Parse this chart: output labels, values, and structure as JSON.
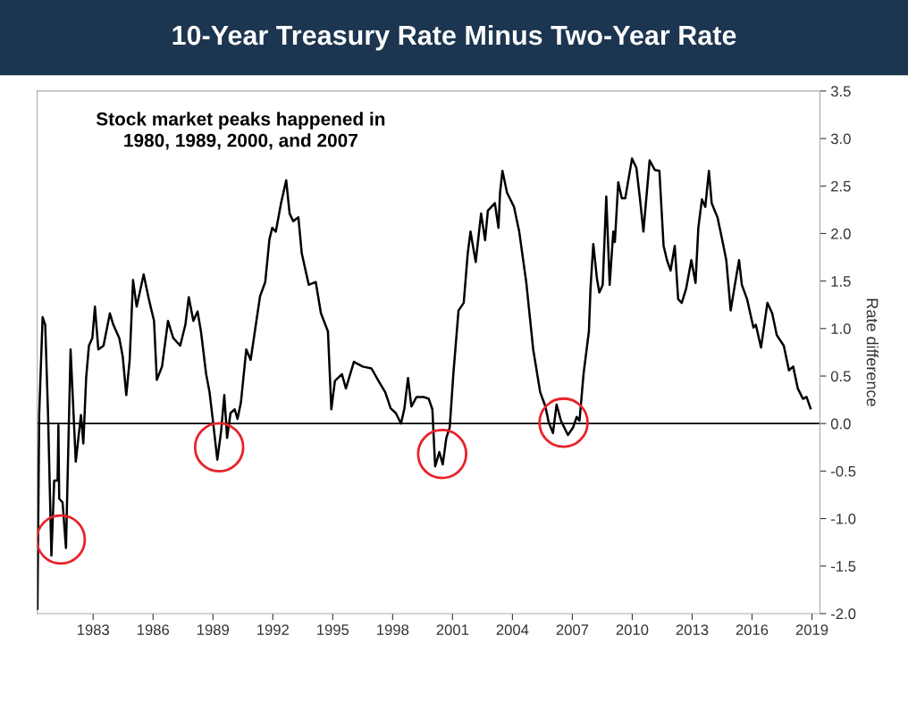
{
  "chart_data": {
    "type": "line",
    "title": "10-Year Treasury Rate Minus Two-Year Rate",
    "ylabel": "Rate difference",
    "annotations": [
      "Stock market peaks happened in\n1980, 1989, 2000, and 2007"
    ],
    "xlim": [
      1980.2,
      2019.4
    ],
    "xticks": [
      1983,
      1986,
      1989,
      1992,
      1995,
      1998,
      2001,
      2004,
      2007,
      2010,
      2013,
      2016,
      2019
    ],
    "ylim": [
      -2.0,
      3.5
    ],
    "yticks": [
      {
        "value": -2,
        "label": "-2.0"
      },
      -1.5,
      {
        "value": -1,
        "label": "-1.0"
      },
      -0.5,
      {
        "value": 0,
        "label": "0.0"
      },
      0.5,
      {
        "value": 1,
        "label": "1.0"
      },
      1.5,
      {
        "value": 2,
        "label": "2.0"
      },
      2.5,
      {
        "value": 3,
        "label": "3.0"
      },
      3.5
    ],
    "grid": false,
    "legend": false,
    "ref_lines": [
      {
        "axis": "y",
        "value": 0,
        "color": "#000000"
      }
    ],
    "series": [
      {
        "color": "#000000",
        "marker": "none",
        "line_style": "solid",
        "x": [
          1980.21,
          1980.3,
          1980.47,
          1980.6,
          1980.74,
          1980.91,
          1981.05,
          1981.22,
          1981.26,
          1981.3,
          1981.47,
          1981.64,
          1981.87,
          1982.13,
          1982.39,
          1982.51,
          1982.65,
          1982.79,
          1982.96,
          1983.09,
          1983.26,
          1983.52,
          1983.84,
          1984.01,
          1984.31,
          1984.48,
          1984.66,
          1984.83,
          1985.0,
          1985.18,
          1985.53,
          1985.79,
          1986.05,
          1986.19,
          1986.45,
          1986.75,
          1987.01,
          1987.36,
          1987.62,
          1987.79,
          1988.02,
          1988.23,
          1988.4,
          1988.66,
          1988.83,
          1989.01,
          1989.22,
          1989.41,
          1989.57,
          1989.71,
          1989.88,
          1990.09,
          1990.23,
          1990.4,
          1990.67,
          1990.89,
          1991.1,
          1991.36,
          1991.62,
          1991.83,
          1991.97,
          1992.15,
          1992.41,
          1992.67,
          1992.84,
          1993.02,
          1993.28,
          1993.45,
          1993.8,
          1994.15,
          1994.41,
          1994.76,
          1994.93,
          1995.11,
          1995.46,
          1995.66,
          1996.06,
          1996.5,
          1996.94,
          1997.29,
          1997.63,
          1997.9,
          1998.16,
          1998.42,
          1998.59,
          1998.77,
          1998.94,
          1999.2,
          1999.55,
          1999.81,
          1999.99,
          2000.13,
          2000.34,
          2000.51,
          2000.69,
          2000.86,
          2001.04,
          2001.3,
          2001.56,
          2001.76,
          2001.9,
          2002.16,
          2002.43,
          2002.63,
          2002.77,
          2003.12,
          2003.3,
          2003.38,
          2003.5,
          2003.73,
          2004.08,
          2004.34,
          2004.69,
          2005.04,
          2005.39,
          2005.65,
          2005.82,
          2006.03,
          2006.21,
          2006.43,
          2006.78,
          2007.04,
          2007.22,
          2007.36,
          2007.56,
          2007.83,
          2007.91,
          2008.05,
          2008.23,
          2008.35,
          2008.52,
          2008.7,
          2008.87,
          2009.05,
          2009.13,
          2009.3,
          2009.48,
          2009.65,
          2009.99,
          2010.21,
          2010.39,
          2010.56,
          2010.87,
          2011.13,
          2011.36,
          2011.57,
          2011.74,
          2011.92,
          2012.13,
          2012.3,
          2012.48,
          2012.7,
          2012.96,
          2013.17,
          2013.31,
          2013.49,
          2013.66,
          2013.84,
          2013.98,
          2014.27,
          2014.53,
          2014.71,
          2014.93,
          2015.14,
          2015.35,
          2015.49,
          2015.75,
          2016.07,
          2016.19,
          2016.45,
          2016.77,
          2017.01,
          2017.24,
          2017.59,
          2017.85,
          2018.06,
          2018.29,
          2018.55,
          2018.73,
          2018.93
        ],
        "values": [
          -1.95,
          0.11,
          1.12,
          1.04,
          0.11,
          -1.39,
          -0.6,
          -0.6,
          -0.02,
          -0.79,
          -0.83,
          -1.31,
          0.78,
          -0.4,
          0.09,
          -0.21,
          0.48,
          0.82,
          0.9,
          1.23,
          0.78,
          0.82,
          1.16,
          1.04,
          0.9,
          0.71,
          0.3,
          0.67,
          1.51,
          1.23,
          1.57,
          1.31,
          1.08,
          0.46,
          0.6,
          1.08,
          0.9,
          0.82,
          1.04,
          1.33,
          1.08,
          1.18,
          0.97,
          0.52,
          0.33,
          0.01,
          -0.38,
          -0.08,
          0.3,
          -0.15,
          0.11,
          0.15,
          0.05,
          0.22,
          0.78,
          0.67,
          0.97,
          1.34,
          1.49,
          1.94,
          2.06,
          2.02,
          2.32,
          2.56,
          2.21,
          2.13,
          2.17,
          1.79,
          1.46,
          1.49,
          1.16,
          0.97,
          0.15,
          0.45,
          0.52,
          0.37,
          0.65,
          0.6,
          0.58,
          0.45,
          0.33,
          0.16,
          0.11,
          0.0,
          0.16,
          0.48,
          0.18,
          0.28,
          0.28,
          0.26,
          0.15,
          -0.45,
          -0.3,
          -0.43,
          -0.15,
          -0.04,
          0.52,
          1.19,
          1.27,
          1.79,
          2.02,
          1.7,
          2.21,
          1.93,
          2.24,
          2.32,
          2.06,
          2.43,
          2.66,
          2.43,
          2.28,
          2.02,
          1.49,
          0.78,
          0.33,
          0.18,
          0.01,
          -0.1,
          0.2,
          0.03,
          -0.12,
          -0.04,
          0.07,
          0.03,
          0.52,
          0.97,
          1.42,
          1.89,
          1.53,
          1.38,
          1.46,
          2.39,
          1.46,
          2.02,
          1.91,
          2.54,
          2.37,
          2.37,
          2.79,
          2.69,
          2.36,
          2.02,
          2.77,
          2.67,
          2.66,
          1.87,
          1.72,
          1.61,
          1.87,
          1.31,
          1.27,
          1.42,
          1.72,
          1.48,
          2.06,
          2.36,
          2.28,
          2.66,
          2.32,
          2.17,
          1.91,
          1.72,
          1.19,
          1.46,
          1.72,
          1.46,
          1.31,
          1.01,
          1.04,
          0.8,
          1.27,
          1.16,
          0.93,
          0.82,
          0.56,
          0.6,
          0.37,
          0.26,
          0.28,
          0.16
        ]
      },
      {
        "type": "scatter",
        "color": "#e8232a",
        "marker": "circle",
        "x": [
          1981.38,
          1989.31,
          2000.48,
          2006.56
        ],
        "values": [
          -1.22,
          -0.25,
          -0.32,
          0.01
        ]
      }
    ]
  }
}
